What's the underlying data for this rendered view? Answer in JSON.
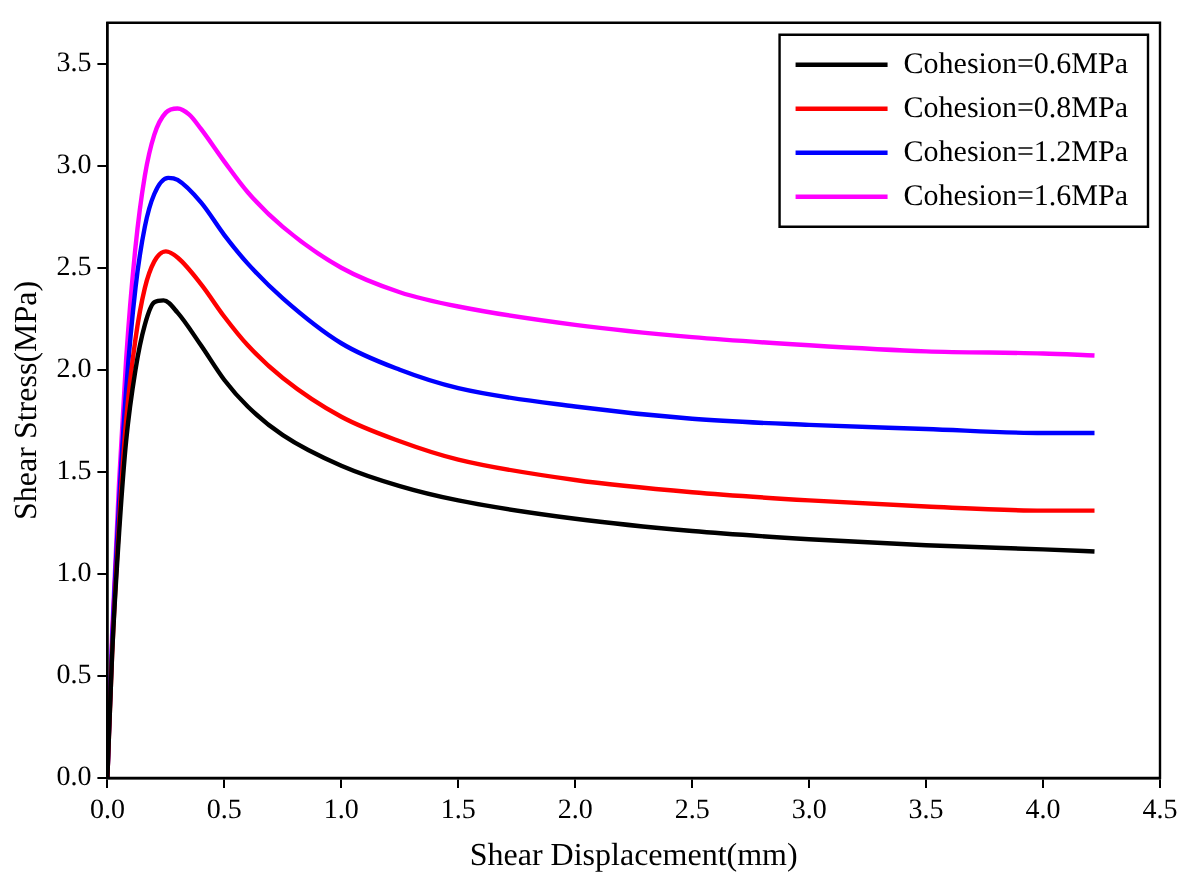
{
  "chart_data": {
    "type": "line",
    "xlabel": "Shear Displacement(mm)",
    "ylabel": "Shear Stress(MPa)",
    "xlim": [
      0,
      4.5
    ],
    "xticks": [
      {
        "value": 0,
        "label": "0.0"
      },
      {
        "value": 0.5,
        "label": "0.5"
      },
      {
        "value": 1,
        "label": "1.0"
      },
      {
        "value": 1.5,
        "label": "1.5"
      },
      {
        "value": 2,
        "label": "2.0"
      },
      {
        "value": 2.5,
        "label": "2.5"
      },
      {
        "value": 3,
        "label": "3.0"
      },
      {
        "value": 3.5,
        "label": "3.5"
      },
      {
        "value": 4,
        "label": "4.0"
      },
      {
        "value": 4.5,
        "label": "4.5"
      }
    ],
    "ylim": [
      0,
      3.7
    ],
    "yticks": [
      {
        "value": 0,
        "label": "0.0"
      },
      {
        "value": 0.5,
        "label": "0.5"
      },
      {
        "value": 1,
        "label": "1.0"
      },
      {
        "value": 1.5,
        "label": "1.5"
      },
      {
        "value": 2,
        "label": "2.0"
      },
      {
        "value": 2.5,
        "label": "2.5"
      },
      {
        "value": 3,
        "label": "3.0"
      },
      {
        "value": 3.5,
        "label": "3.5"
      }
    ],
    "grid": false,
    "legend": "top right",
    "marker": "none",
    "line_style": "solid",
    "series": [
      {
        "name": "Cohesion=0.6MPa",
        "color": "#000000",
        "x": [
          0,
          0.02,
          0.05,
          0.08,
          0.12,
          0.16,
          0.2,
          0.24,
          0.3,
          0.4,
          0.5,
          0.6,
          0.75,
          1.0,
          1.25,
          1.5,
          2.0,
          2.5,
          3.0,
          3.5,
          4.0,
          4.22
        ],
        "values": [
          0,
          0.6,
          1.2,
          1.65,
          2.0,
          2.22,
          2.33,
          2.34,
          2.28,
          2.12,
          1.95,
          1.82,
          1.68,
          1.53,
          1.43,
          1.36,
          1.27,
          1.21,
          1.17,
          1.14,
          1.12,
          1.11
        ]
      },
      {
        "name": "Cohesion=0.8MPa",
        "color": "#ff0000",
        "x": [
          0,
          0.02,
          0.05,
          0.08,
          0.12,
          0.16,
          0.2,
          0.25,
          0.3,
          0.4,
          0.5,
          0.6,
          0.75,
          1.0,
          1.25,
          1.5,
          2.0,
          2.5,
          3.0,
          3.5,
          4.0,
          4.22
        ],
        "values": [
          0,
          0.6,
          1.25,
          1.75,
          2.15,
          2.4,
          2.53,
          2.58,
          2.55,
          2.42,
          2.26,
          2.12,
          1.96,
          1.77,
          1.65,
          1.56,
          1.46,
          1.4,
          1.36,
          1.33,
          1.31,
          1.31
        ]
      },
      {
        "name": "Cohesion=1.2MPa",
        "color": "#0000ff",
        "x": [
          0,
          0.02,
          0.05,
          0.08,
          0.12,
          0.16,
          0.2,
          0.26,
          0.3,
          0.4,
          0.5,
          0.6,
          0.75,
          1.0,
          1.25,
          1.5,
          2.0,
          2.5,
          3.0,
          3.5,
          4.0,
          4.22
        ],
        "values": [
          0,
          0.65,
          1.35,
          1.9,
          2.4,
          2.7,
          2.86,
          2.94,
          2.93,
          2.82,
          2.66,
          2.52,
          2.35,
          2.13,
          2.0,
          1.91,
          1.82,
          1.76,
          1.73,
          1.71,
          1.69,
          1.69
        ]
      },
      {
        "name": "Cohesion=1.6MPa",
        "color": "#ff00ff",
        "x": [
          0,
          0.02,
          0.05,
          0.08,
          0.12,
          0.16,
          0.2,
          0.25,
          0.3,
          0.35,
          0.4,
          0.5,
          0.6,
          0.75,
          1.0,
          1.25,
          1.5,
          2.0,
          2.5,
          3.0,
          3.5,
          4.0,
          4.22
        ],
        "values": [
          0,
          0.7,
          1.45,
          2.05,
          2.6,
          2.95,
          3.15,
          3.26,
          3.28,
          3.25,
          3.18,
          3.02,
          2.87,
          2.7,
          2.5,
          2.38,
          2.31,
          2.22,
          2.16,
          2.12,
          2.09,
          2.08,
          2.07
        ]
      }
    ]
  }
}
